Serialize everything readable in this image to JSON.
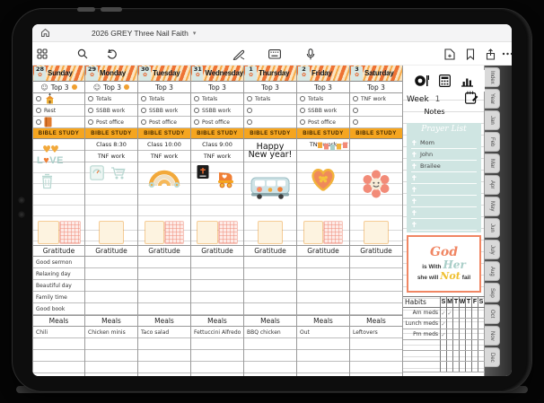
{
  "app": {
    "title": "2026 GREY Three Nail Faith",
    "toolbar_icons_left": [
      "home-icon",
      "grid-icon",
      "search-icon",
      "undo-icon"
    ],
    "toolbar_icons_center": [
      "pen-icon",
      "keyboard-icon",
      "mic-icon"
    ],
    "toolbar_icons_right": [
      "add-page-icon",
      "bookmark-icon",
      "share-icon",
      "more-icon"
    ]
  },
  "planner": {
    "labels": {
      "top3": "Top 3",
      "bible": "BIBLE STUDY",
      "gratitude": "Gratitude",
      "meals": "Meals"
    },
    "days": [
      {
        "date": "28",
        "name": "Sunday",
        "mood": true,
        "items": [
          {
            "icon": "church-icon",
            "text": ""
          },
          {
            "icon": "",
            "text": "Rest"
          },
          {
            "icon": "book-icon",
            "text": ""
          }
        ],
        "bible_lines": [
          "",
          ""
        ],
        "bible_note": "",
        "stickers": [
          "hearts-love-sticker",
          "trash-can-sticker"
        ],
        "gratitude": [
          "Good sermon",
          "Relaxing day",
          "Beautiful day",
          "Family time",
          "Good book"
        ],
        "meal": "Chili"
      },
      {
        "date": "29",
        "name": "Monday",
        "mood": true,
        "items": [
          {
            "icon": "",
            "text": "Totals"
          },
          {
            "icon": "",
            "text": "SSBB work"
          },
          {
            "icon": "",
            "text": "Post office"
          }
        ],
        "bible_lines": [
          "Class 8:30",
          "TNF work"
        ],
        "bible_note": "",
        "stickers": [
          "scale-sticker",
          "cart-sticker"
        ],
        "gratitude": [
          "",
          "",
          "",
          "",
          ""
        ],
        "meal": "Chicken minis"
      },
      {
        "date": "30",
        "name": "Tuesday",
        "mood": false,
        "items": [
          {
            "icon": "",
            "text": "Totals"
          },
          {
            "icon": "",
            "text": "SSBB work"
          },
          {
            "icon": "",
            "text": "Post office"
          }
        ],
        "bible_lines": [
          "Class 10:00",
          "TNF work"
        ],
        "bible_note": "",
        "stickers": [
          "rainbow-sticker"
        ],
        "gratitude": [
          "",
          "",
          "",
          "",
          ""
        ],
        "meal": "Taco salad"
      },
      {
        "date": "31",
        "name": "Wednesday",
        "mood": false,
        "items": [
          {
            "icon": "",
            "text": "Totals"
          },
          {
            "icon": "",
            "text": "SSBB work"
          },
          {
            "icon": "",
            "text": "Post office"
          }
        ],
        "bible_lines": [
          "Class 9:00",
          "TNF work"
        ],
        "bible_note": "",
        "stickers": [
          "bible-sticker",
          "skate-sticker"
        ],
        "gratitude": [
          "",
          "",
          "",
          "",
          ""
        ],
        "meal": "Fettuccini Alfredo"
      },
      {
        "date": "1",
        "name": "Thursday",
        "mood": false,
        "items": [
          {
            "icon": "",
            "text": "Totals"
          },
          {
            "icon": "",
            "text": ""
          },
          {
            "icon": "",
            "text": ""
          }
        ],
        "bible_lines": [
          "",
          ""
        ],
        "bible_note": "Happy New year!",
        "stickers": [
          "bus-sticker"
        ],
        "gratitude": [
          "",
          "",
          "",
          "",
          ""
        ],
        "meal": "BBQ chicken"
      },
      {
        "date": "2",
        "name": "Friday",
        "mood": false,
        "items": [
          {
            "icon": "",
            "text": "Totals"
          },
          {
            "icon": "",
            "text": "SSBB work"
          },
          {
            "icon": "",
            "text": "Post office"
          }
        ],
        "bible_lines": [
          "TNF work",
          ""
        ],
        "bible_note": "",
        "stickers": [
          "banner-sticker",
          "heart-sticker"
        ],
        "gratitude": [
          "",
          "",
          "",
          "",
          ""
        ],
        "meal": "Out"
      },
      {
        "date": "3",
        "name": "Saturday",
        "mood": false,
        "items": [
          {
            "icon": "",
            "text": "TNF work"
          },
          {
            "icon": "",
            "text": ""
          },
          {
            "icon": "",
            "text": ""
          }
        ],
        "bible_lines": [
          "",
          ""
        ],
        "bible_note": "",
        "stickers": [
          "flower-sticker"
        ],
        "gratitude": [
          "",
          "",
          "",
          "",
          ""
        ],
        "meal": "Leftovers"
      }
    ]
  },
  "sidebar": {
    "icons": [
      "meal-plate-icon",
      "calculator-icon",
      "bar-chart-icon",
      "notepad-icon"
    ],
    "week_label": "Week",
    "week_value": "1",
    "notes_label": "Notes",
    "prayer": {
      "title": "Prayer List",
      "items": [
        "Mom",
        "John",
        "Brailee",
        "",
        "",
        "",
        "",
        ""
      ]
    },
    "quote": {
      "l1": "God",
      "l2a": "is With",
      "l2b": "Her",
      "l3a": "she will",
      "l3b": "Not",
      "l3c": "fail"
    },
    "habits": {
      "label": "Habits",
      "day_letters": [
        "S",
        "M",
        "T",
        "W",
        "T",
        "F",
        "S"
      ],
      "rows": [
        {
          "name": "Am meds",
          "checks": "1100000"
        },
        {
          "name": "Lunch meds",
          "checks": "1000000"
        },
        {
          "name": "Pm meds",
          "checks": "1000000"
        },
        {
          "name": "",
          "checks": "0000000"
        },
        {
          "name": "",
          "checks": "0000000"
        },
        {
          "name": "",
          "checks": "0000000"
        }
      ]
    }
  },
  "tabs": [
    "Index",
    "Year",
    "Jan",
    "Feb",
    "Mar",
    "Apr",
    "May",
    "Jun",
    "July",
    "Aug",
    "Sep",
    "Oct",
    "Nov",
    "Dec"
  ],
  "colors": {
    "washi_orange": "#ee7233",
    "bible_bar": "#f5a51f",
    "teal_card": "#cfe5e2",
    "quote_coral": "#f08663",
    "quote_teal": "#a9cec8",
    "quote_yellow": "#f0c030",
    "accent_dot": "#f0a030"
  }
}
